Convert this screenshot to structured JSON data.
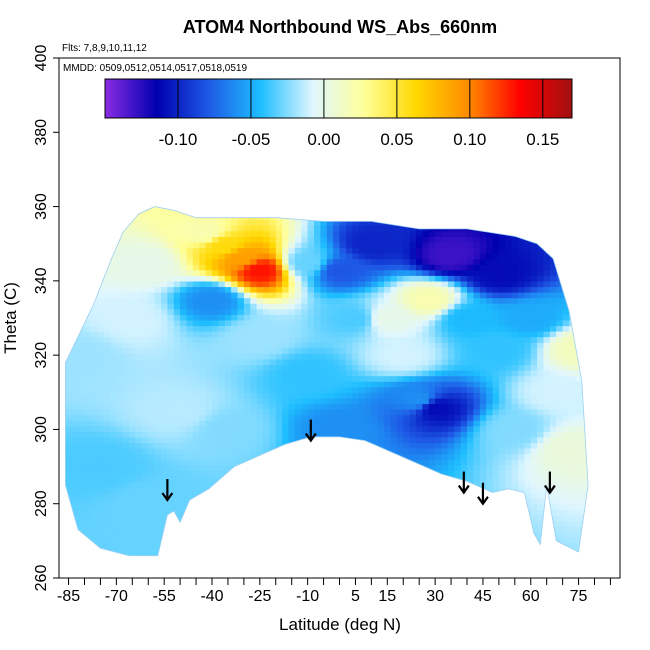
{
  "chart_data": {
    "type": "heatmap",
    "title": "ATOM4 Northbound WS_Abs_660nm",
    "notes": [
      "Flts: 7,8,9,10,11,12",
      "MMDD: 0509,0512,0514,0517,0518,0519"
    ],
    "xlabel": "Latitude (deg N)",
    "ylabel": "Theta (C)",
    "xlim": [
      -88,
      88
    ],
    "ylim": [
      260,
      400
    ],
    "x_ticks": [
      -85,
      -70,
      -55,
      -40,
      -25,
      -10,
      5,
      15,
      30,
      45,
      60,
      75
    ],
    "y_ticks": [
      260,
      280,
      300,
      320,
      340,
      360,
      380,
      400
    ],
    "colorbar": {
      "range": [
        -0.15,
        0.17
      ],
      "ticks": [
        -0.1,
        -0.05,
        0.0,
        0.05,
        0.1,
        0.15
      ],
      "tick_labels": [
        "-0.10",
        "-0.05",
        "0.00",
        "0.05",
        "0.10",
        "0.15"
      ],
      "colors": [
        "#8a2be2",
        "#0000b0",
        "#1e5ae6",
        "#1ebeff",
        "#dff6ff",
        "#ffff99",
        "#ffd700",
        "#ff8c00",
        "#ff0000",
        "#a01010"
      ]
    },
    "arrows": [
      {
        "lat": -54,
        "theta": 281
      },
      {
        "lat": -9,
        "theta": 297
      },
      {
        "lat": 39,
        "theta": 283
      },
      {
        "lat": 45,
        "theta": 280
      },
      {
        "lat": 66,
        "theta": 283
      }
    ],
    "coverage_top": [
      [
        -86,
        318
      ],
      [
        -82,
        325
      ],
      [
        -77,
        334
      ],
      [
        -72,
        345
      ],
      [
        -68,
        353
      ],
      [
        -63,
        358
      ],
      [
        -58,
        360
      ],
      [
        -52,
        359
      ],
      [
        -45,
        357
      ],
      [
        -35,
        357
      ],
      [
        -20,
        357
      ],
      [
        -5,
        356
      ],
      [
        10,
        356
      ],
      [
        25,
        354
      ],
      [
        40,
        354
      ],
      [
        55,
        352
      ],
      [
        62,
        350
      ],
      [
        67,
        346
      ],
      [
        72,
        332
      ],
      [
        76,
        313
      ],
      [
        78,
        285
      ]
    ],
    "coverage_bottom": [
      [
        -86,
        285
      ],
      [
        -82,
        273
      ],
      [
        -75,
        268
      ],
      [
        -66,
        266
      ],
      [
        -57,
        266
      ],
      [
        -54,
        277
      ],
      [
        -52,
        278
      ],
      [
        -50,
        275
      ],
      [
        -47,
        281
      ],
      [
        -41,
        284
      ],
      [
        -33,
        290
      ],
      [
        -25,
        293
      ],
      [
        -17,
        296
      ],
      [
        -9,
        298
      ],
      [
        0,
        298
      ],
      [
        8,
        297
      ],
      [
        16,
        294
      ],
      [
        24,
        291
      ],
      [
        32,
        288
      ],
      [
        40,
        286
      ],
      [
        48,
        283
      ],
      [
        53,
        284
      ],
      [
        58,
        283
      ],
      [
        61,
        272
      ],
      [
        63,
        269
      ],
      [
        65,
        285
      ],
      [
        68,
        270
      ],
      [
        75,
        267
      ],
      [
        78,
        285
      ]
    ],
    "field_points": [
      {
        "lat": -75,
        "theta": 290,
        "value": -0.035
      },
      {
        "lat": -60,
        "theta": 280,
        "value": -0.03
      },
      {
        "lat": -82,
        "theta": 320,
        "value": -0.02
      },
      {
        "lat": -65,
        "theta": 330,
        "value": -0.01
      },
      {
        "lat": -50,
        "theta": 305,
        "value": -0.015
      },
      {
        "lat": -35,
        "theta": 300,
        "value": -0.025
      },
      {
        "lat": -25,
        "theta": 325,
        "value": -0.02
      },
      {
        "lat": -10,
        "theta": 315,
        "value": -0.04
      },
      {
        "lat": -10,
        "theta": 345,
        "value": -0.03
      },
      {
        "lat": 0,
        "theta": 300,
        "value": -0.06
      },
      {
        "lat": 5,
        "theta": 330,
        "value": -0.035
      },
      {
        "lat": 20,
        "theta": 320,
        "value": -0.01
      },
      {
        "lat": 25,
        "theta": 308,
        "value": -0.06
      },
      {
        "lat": 30,
        "theta": 306,
        "value": -0.11
      },
      {
        "lat": 40,
        "theta": 330,
        "value": -0.045
      },
      {
        "lat": 50,
        "theta": 322,
        "value": -0.04
      },
      {
        "lat": 60,
        "theta": 330,
        "value": -0.05
      },
      {
        "lat": 68,
        "theta": 310,
        "value": -0.01
      },
      {
        "lat": 75,
        "theta": 322,
        "value": 0.015
      },
      {
        "lat": 72,
        "theta": 295,
        "value": 0.005
      },
      {
        "lat": 10,
        "theta": 350,
        "value": -0.1
      },
      {
        "lat": 35,
        "theta": 347,
        "value": -0.13
      },
      {
        "lat": 50,
        "theta": 342,
        "value": -0.11
      },
      {
        "lat": 0,
        "theta": 343,
        "value": -0.08
      },
      {
        "lat": 55,
        "theta": 300,
        "value": -0.025
      },
      {
        "lat": -60,
        "theta": 345,
        "value": 0.0
      },
      {
        "lat": 28,
        "theta": 335,
        "value": 0.02
      },
      {
        "lat": 15,
        "theta": 330,
        "value": 0.0
      },
      {
        "lat": -40,
        "theta": 335,
        "value": -0.06
      }
    ],
    "high_band": {
      "from": [
        -42,
        353
      ],
      "to": [
        -25,
        343
      ],
      "values": [
        0.02,
        0.06,
        0.09,
        0.13
      ]
    }
  }
}
